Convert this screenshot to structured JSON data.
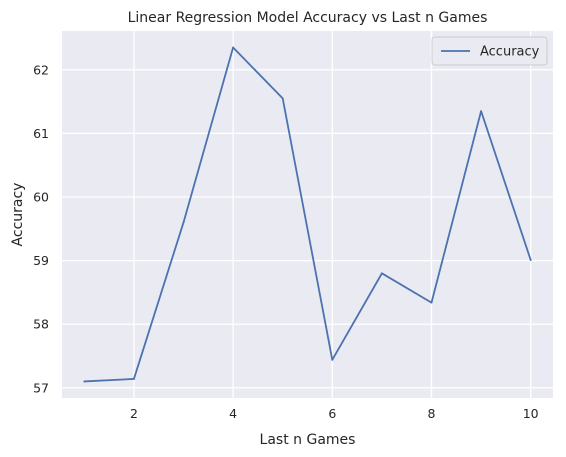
{
  "chart_data": {
    "type": "line",
    "title": "Linear Regression Model Accuracy vs Last n Games",
    "xlabel": "Last n Games",
    "ylabel": "Accuracy",
    "xlim": [
      0.55,
      10.45
    ],
    "ylim": [
      56.84,
      62.61
    ],
    "x_ticks": [
      2,
      4,
      6,
      8,
      10
    ],
    "y_ticks": [
      57,
      58,
      59,
      60,
      61,
      62
    ],
    "grid": true,
    "legend_position": "top-right",
    "colors": {
      "background": "#eaeaf2",
      "grid": "#ffffff",
      "line": "#4c72b0"
    },
    "series": [
      {
        "name": "Accuracy",
        "x": [
          1,
          2,
          3,
          4,
          5,
          6,
          7,
          8,
          9,
          10
        ],
        "y": [
          57.1,
          57.14,
          59.6,
          62.35,
          61.55,
          57.44,
          58.8,
          58.34,
          61.35,
          59.01
        ]
      }
    ]
  }
}
